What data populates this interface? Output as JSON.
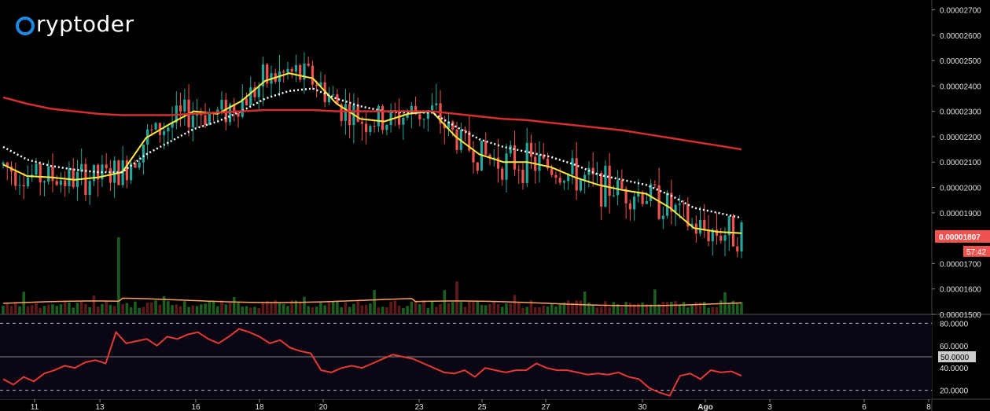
{
  "brand": {
    "logo_text": "ryptoder",
    "logo_icon": "circle-c-icon"
  },
  "chart_data": [
    {
      "type": "candlestick",
      "title": "",
      "xlabel": "",
      "ylabel": "",
      "ylim": [
        1.5e-05,
        2.72e-05
      ],
      "y_ticks": [
        "0.00002700",
        "0.00002600",
        "0.00002500",
        "0.00002400",
        "0.00002300",
        "0.00002200",
        "0.00002100",
        "0.00002000",
        "0.00001900",
        "0.00001700",
        "0.00001600",
        "0.00001500"
      ],
      "x_ticks": [
        "11",
        "13",
        "16",
        "18",
        "20",
        "23",
        "25",
        "27",
        "30",
        "Ago",
        "3",
        "6",
        "8"
      ],
      "price_label": "0.00001807",
      "timer_label": "57:42",
      "colors": {
        "up": "#26a69a",
        "down": "#ef5350",
        "price_badge": "#ef5350",
        "ema_fast": "#ffeb3b",
        "ema_slow": "#ffffff",
        "ma_long": "#d32f2f",
        "volume_ma": "#ff9f66"
      },
      "series": [
        {
          "name": "",
          "kind": "ema",
          "color": "#ffeb3b",
          "values": [
            2.09e-05,
            2.045e-05,
            2.04e-05,
            2.03e-05,
            2.04e-05,
            2.06e-05,
            2.195e-05,
            2.25e-05,
            2.3e-05,
            2.29e-05,
            2.34e-05,
            2.42e-05,
            2.45e-05,
            2.43e-05,
            2.33e-05,
            2.27e-05,
            2.26e-05,
            2.29e-05,
            2.3e-05,
            2.2e-05,
            2.13e-05,
            2.1e-05,
            2.1e-05,
            2.08e-05,
            2.04e-05,
            2.01e-05,
            1.99e-05,
            1.975e-05,
            1.92e-05,
            1.84e-05,
            1.825e-05,
            1.82e-05
          ]
        },
        {
          "name": "",
          "kind": "ema",
          "color": "#ffffff",
          "values": [
            2.16e-05,
            2.11e-05,
            2.085e-05,
            2.07e-05,
            2.06e-05,
            2.06e-05,
            2.13e-05,
            2.18e-05,
            2.23e-05,
            2.26e-05,
            2.3e-05,
            2.35e-05,
            2.38e-05,
            2.39e-05,
            2.35e-05,
            2.32e-05,
            2.3e-05,
            2.295e-05,
            2.295e-05,
            2.24e-05,
            2.19e-05,
            2.16e-05,
            2.14e-05,
            2.12e-05,
            2.09e-05,
            2.05e-05,
            2.03e-05,
            2.01e-05,
            1.97e-05,
            1.92e-05,
            1.9e-05,
            1.88e-05
          ]
        },
        {
          "name": "",
          "kind": "ma",
          "color": "#d32f2f",
          "values": [
            2.355e-05,
            2.33e-05,
            2.31e-05,
            2.3e-05,
            2.29e-05,
            2.285e-05,
            2.285e-05,
            2.285e-05,
            2.29e-05,
            2.295e-05,
            2.3e-05,
            2.305e-05,
            2.305e-05,
            2.305e-05,
            2.3e-05,
            2.3e-05,
            2.3e-05,
            2.3e-05,
            2.3e-05,
            2.29e-05,
            2.28e-05,
            2.27e-05,
            2.265e-05,
            2.255e-05,
            2.245e-05,
            2.235e-05,
            2.225e-05,
            2.21e-05,
            2.195e-05,
            2.18e-05,
            2.165e-05,
            2.15e-05
          ]
        }
      ]
    },
    {
      "type": "line",
      "title": "",
      "ylim": [
        12,
        88
      ],
      "y_ticks": [
        "80.0000",
        "60.0000",
        "50.0000",
        "40.0000",
        "20.0000"
      ],
      "reference_lines": [
        80,
        50,
        20
      ],
      "series": [
        {
          "name": "",
          "color": "#e53935",
          "values": [
            30,
            25,
            32,
            28,
            35,
            38,
            42,
            40,
            45,
            47,
            44,
            72,
            62,
            64,
            66,
            60,
            68,
            66,
            70,
            72,
            66,
            62,
            68,
            75,
            72,
            68,
            62,
            65,
            58,
            55,
            53,
            38,
            36,
            40,
            42,
            40,
            44,
            48,
            52,
            50,
            48,
            44,
            40,
            36,
            35,
            38,
            32,
            40,
            38,
            36,
            38,
            38,
            44,
            40,
            38,
            38,
            36,
            34,
            35,
            34,
            36,
            32,
            30,
            22,
            18,
            15,
            33,
            35,
            30,
            38,
            36,
            37,
            33
          ]
        }
      ]
    }
  ]
}
